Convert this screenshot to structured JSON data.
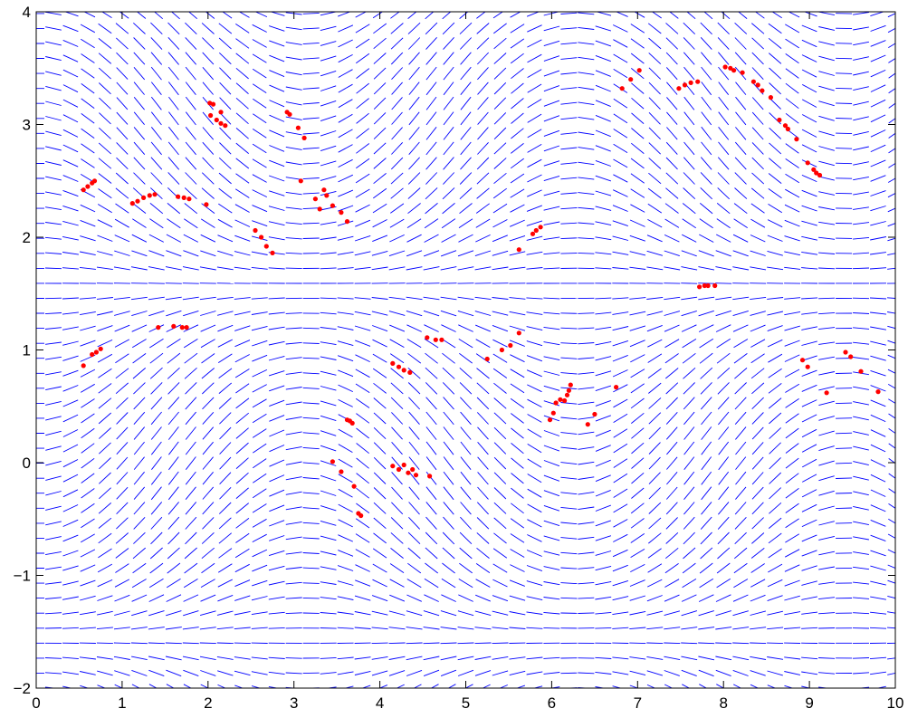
{
  "chart_data": {
    "type": "scatter",
    "title": "",
    "xlabel": "",
    "ylabel": "",
    "xlim": [
      0,
      10
    ],
    "ylim": [
      -2,
      4
    ],
    "xticks": [
      "0",
      "1",
      "2",
      "3",
      "4",
      "5",
      "6",
      "7",
      "8",
      "9",
      "10"
    ],
    "yticks": [
      "−2",
      "−1",
      "0",
      "1",
      "2",
      "3",
      "4"
    ],
    "grid": false,
    "legend": "none",
    "series": [
      {
        "kind": "direction-field",
        "color": "#0000ff",
        "x_step": 0.2,
        "y_step": 0.133,
        "note_slope_function": "dy/dx = sin(x) * cos(y)"
      },
      {
        "kind": "points",
        "color": "#ff0000",
        "points": [
          [
            0.55,
            2.42
          ],
          [
            0.6,
            2.45
          ],
          [
            0.65,
            2.48
          ],
          [
            0.68,
            2.5
          ],
          [
            1.12,
            2.3
          ],
          [
            1.18,
            2.32
          ],
          [
            1.25,
            2.35
          ],
          [
            1.32,
            2.37
          ],
          [
            1.38,
            2.38
          ],
          [
            1.65,
            2.36
          ],
          [
            1.72,
            2.35
          ],
          [
            1.78,
            2.34
          ],
          [
            1.98,
            2.29
          ],
          [
            2.02,
            3.19
          ],
          [
            2.06,
            3.18
          ],
          [
            2.03,
            3.08
          ],
          [
            2.1,
            3.04
          ],
          [
            2.15,
            3.01
          ],
          [
            2.2,
            2.99
          ],
          [
            2.15,
            3.11
          ],
          [
            2.55,
            2.06
          ],
          [
            2.62,
            2.0
          ],
          [
            2.68,
            1.92
          ],
          [
            2.75,
            1.86
          ],
          [
            2.92,
            3.11
          ],
          [
            2.95,
            3.09
          ],
          [
            3.05,
            2.97
          ],
          [
            3.12,
            2.88
          ],
          [
            3.08,
            2.5
          ],
          [
            3.25,
            2.34
          ],
          [
            3.3,
            2.25
          ],
          [
            3.38,
            2.37
          ],
          [
            3.45,
            2.28
          ],
          [
            3.55,
            2.22
          ],
          [
            3.62,
            2.14
          ],
          [
            3.35,
            2.42
          ],
          [
            0.55,
            0.86
          ],
          [
            0.65,
            0.96
          ],
          [
            0.7,
            0.98
          ],
          [
            0.75,
            1.01
          ],
          [
            1.42,
            1.2
          ],
          [
            1.6,
            1.21
          ],
          [
            1.7,
            1.2
          ],
          [
            1.75,
            1.2
          ],
          [
            3.45,
            0.01
          ],
          [
            3.55,
            -0.08
          ],
          [
            3.62,
            0.38
          ],
          [
            3.65,
            0.37
          ],
          [
            3.68,
            0.35
          ],
          [
            3.7,
            -0.21
          ],
          [
            3.75,
            -0.45
          ],
          [
            3.78,
            -0.47
          ],
          [
            4.15,
            0.88
          ],
          [
            4.22,
            0.85
          ],
          [
            4.28,
            0.82
          ],
          [
            4.35,
            0.8
          ],
          [
            4.15,
            -0.03
          ],
          [
            4.22,
            -0.06
          ],
          [
            4.28,
            -0.02
          ],
          [
            4.33,
            -0.09
          ],
          [
            4.38,
            -0.06
          ],
          [
            4.42,
            -0.11
          ],
          [
            4.58,
            -0.12
          ],
          [
            4.55,
            1.11
          ],
          [
            4.65,
            1.09
          ],
          [
            4.72,
            1.09
          ],
          [
            5.25,
            0.92
          ],
          [
            5.42,
            1.0
          ],
          [
            5.52,
            1.04
          ],
          [
            5.62,
            1.15
          ],
          [
            5.62,
            1.89
          ],
          [
            5.78,
            2.03
          ],
          [
            5.82,
            2.06
          ],
          [
            5.87,
            2.09
          ],
          [
            5.98,
            0.38
          ],
          [
            6.02,
            0.44
          ],
          [
            6.05,
            0.53
          ],
          [
            6.1,
            0.56
          ],
          [
            6.15,
            0.55
          ],
          [
            6.18,
            0.6
          ],
          [
            6.2,
            0.64
          ],
          [
            6.22,
            0.69
          ],
          [
            6.42,
            0.34
          ],
          [
            6.5,
            0.43
          ],
          [
            6.75,
            0.67
          ],
          [
            6.82,
            3.32
          ],
          [
            6.92,
            3.4
          ],
          [
            7.02,
            3.48
          ],
          [
            7.48,
            3.32
          ],
          [
            7.55,
            3.35
          ],
          [
            7.62,
            3.37
          ],
          [
            7.7,
            3.38
          ],
          [
            7.72,
            1.56
          ],
          [
            7.78,
            1.57
          ],
          [
            7.82,
            1.57
          ],
          [
            7.9,
            1.57
          ],
          [
            8.02,
            3.51
          ],
          [
            8.08,
            3.5
          ],
          [
            8.12,
            3.48
          ],
          [
            8.22,
            3.46
          ],
          [
            8.35,
            3.38
          ],
          [
            8.4,
            3.35
          ],
          [
            8.45,
            3.3
          ],
          [
            8.55,
            3.24
          ],
          [
            8.65,
            3.04
          ],
          [
            8.72,
            2.99
          ],
          [
            8.75,
            2.96
          ],
          [
            8.85,
            2.87
          ],
          [
            8.98,
            2.66
          ],
          [
            9.05,
            2.6
          ],
          [
            9.08,
            2.57
          ],
          [
            9.12,
            2.55
          ],
          [
            8.92,
            0.91
          ],
          [
            8.98,
            0.85
          ],
          [
            9.2,
            0.62
          ],
          [
            9.42,
            0.98
          ],
          [
            9.48,
            0.94
          ],
          [
            9.6,
            0.81
          ],
          [
            9.8,
            0.63
          ]
        ]
      }
    ]
  }
}
